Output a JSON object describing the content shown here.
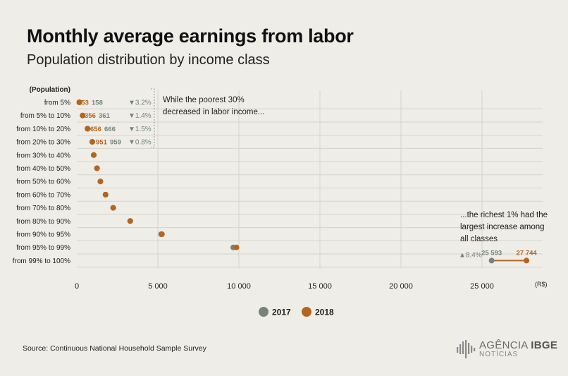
{
  "title": "Monthly average earnings from labor",
  "subtitle": "Population distribution by income class",
  "source": "Source: Continuous National Household Sample Survey",
  "logo": {
    "brand": "AGÊNCIA",
    "brand_bold": "IBGE",
    "sub": "NOTÍCIAS"
  },
  "colors": {
    "s2017": "#76837c",
    "s2018": "#b5651d",
    "background": "#efede8",
    "grid": "#d6d3cc"
  },
  "chart_data": {
    "type": "dot",
    "ylabel": "(Population)",
    "xlabel": "(R$)",
    "xlim": [
      0,
      28000
    ],
    "xticks": [
      0,
      5000,
      10000,
      15000,
      20000,
      25000
    ],
    "xtick_labels": [
      "0",
      "5 000",
      "10 000",
      "15 000",
      "20 000",
      "25 000"
    ],
    "categories": [
      "from 5%",
      "from 5% to 10%",
      "from 10% to 20%",
      "from 20% to 30%",
      "from 30% to 40%",
      "from 40% to 50%",
      "from 50% to 60%",
      "from 60% to 70%",
      "from 70% to 80%",
      "from 80% to 90%",
      "from 90% to 95%",
      "from 95% to 99%",
      "from 99% to 100%"
    ],
    "series": [
      {
        "name": "2017",
        "color": "#76837c",
        "values": [
          158,
          361,
          666,
          959,
          1050,
          1250,
          1460,
          1780,
          2250,
          3300,
          5200,
          9650,
          25593
        ]
      },
      {
        "name": "2018",
        "color": "#b5651d",
        "values": [
          153,
          356,
          656,
          951,
          1040,
          1240,
          1450,
          1770,
          2240,
          3290,
          5250,
          9850,
          27744
        ]
      }
    ],
    "data_labels": [
      {
        "row": 0,
        "v2018": "153",
        "v2017": "158",
        "change": "▼3.2%"
      },
      {
        "row": 1,
        "v2018": "356",
        "v2017": "361",
        "change": "▼1.4%"
      },
      {
        "row": 2,
        "v2018": "656",
        "v2017": "666",
        "change": "▼1.5%"
      },
      {
        "row": 3,
        "v2018": "951",
        "v2017": "959",
        "change": "▼0.8%"
      },
      {
        "row": 12,
        "v2018": "27 744",
        "v2017": "25 593",
        "change": "▲8.4%"
      }
    ],
    "annotations": [
      {
        "text": "While the poorest 30% decreased in labor income..."
      },
      {
        "text": "...the richest 1% had the largest increase among all classes"
      }
    ],
    "legend": {
      "position": "bottom-center",
      "items": [
        "2017",
        "2018"
      ]
    },
    "grid": true
  }
}
